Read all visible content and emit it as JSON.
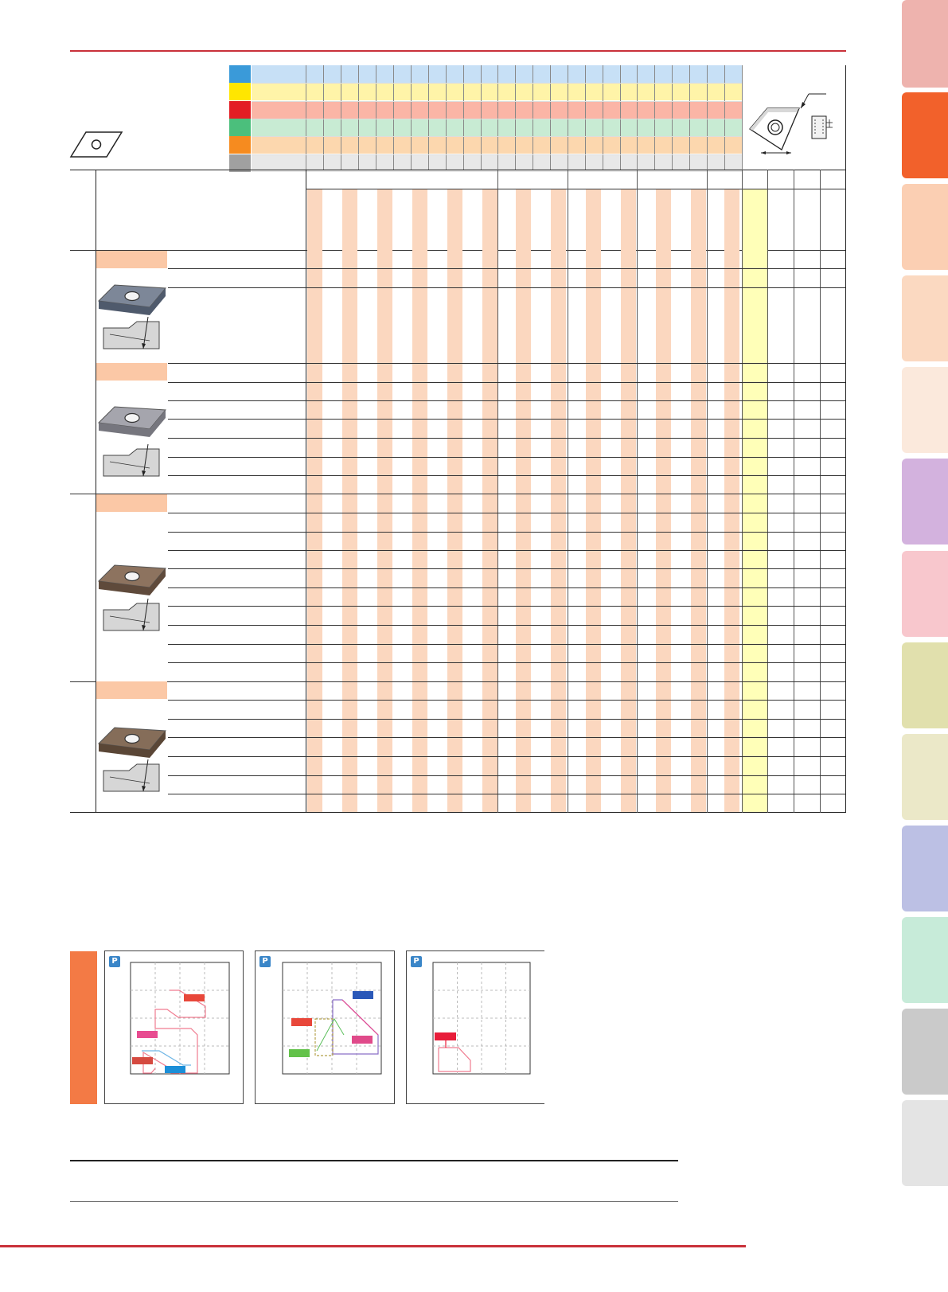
{
  "colors": {
    "accent_red": "#c9313a",
    "header_stripe": "#fbd7bf",
    "highlight_column": "#ffffb8",
    "grade_header": "#fbc8a6",
    "chart_side_bar": "#f37a45",
    "category_P": "#3a9ad9",
    "category_M": "#ffe600",
    "category_K": "#e31d24",
    "category_N": "#4bbf7c",
    "category_S": "#f68b1f",
    "category_H": "#a0a0a0"
  },
  "side_tabs": [
    {
      "color": "#eeb3ae"
    },
    {
      "color": "#f2612b"
    },
    {
      "color": "#fbcfb3"
    },
    {
      "color": "#fbd9c1"
    },
    {
      "color": "#fbe9dc"
    },
    {
      "color": "#d3b2de"
    },
    {
      "color": "#f8c7cd"
    },
    {
      "color": "#e1e0ad"
    },
    {
      "color": "#ebe8c8"
    },
    {
      "color": "#bcc0e4"
    },
    {
      "color": "#c7ebd9"
    },
    {
      "color": "#cacaca"
    },
    {
      "color": "#e4e4e4"
    }
  ],
  "chart_labels": {
    "chart1_badge": "P",
    "chart2_badge": "P",
    "chart3_badge": "P"
  },
  "icons": [
    "rhombic-insert-outline-icon",
    "insert-dimension-diagram-icon",
    "insert-photo-icon",
    "edge-profile-icon"
  ]
}
